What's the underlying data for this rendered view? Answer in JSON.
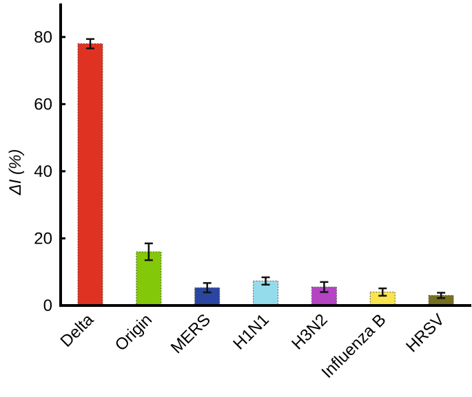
{
  "chart_data": {
    "type": "bar",
    "y_label": "ΔI (%)",
    "categories": [
      "Delta",
      "Origin",
      "MERS",
      "H1N1",
      "H3N2",
      "Influenza B",
      "HRSV"
    ],
    "values": [
      78,
      16,
      5.3,
      7.3,
      5.5,
      4,
      3
    ],
    "errors": [
      1.4,
      2.5,
      1.4,
      1.1,
      1.5,
      1.1,
      0.8
    ],
    "colors": [
      "#e03222",
      "#84c80a",
      "#2a46a0",
      "#94dcec",
      "#b444c4",
      "#f8e44c",
      "#75701f"
    ],
    "ylim": [
      0,
      90
    ],
    "yticks": [
      0,
      20,
      40,
      60,
      80
    ]
  }
}
